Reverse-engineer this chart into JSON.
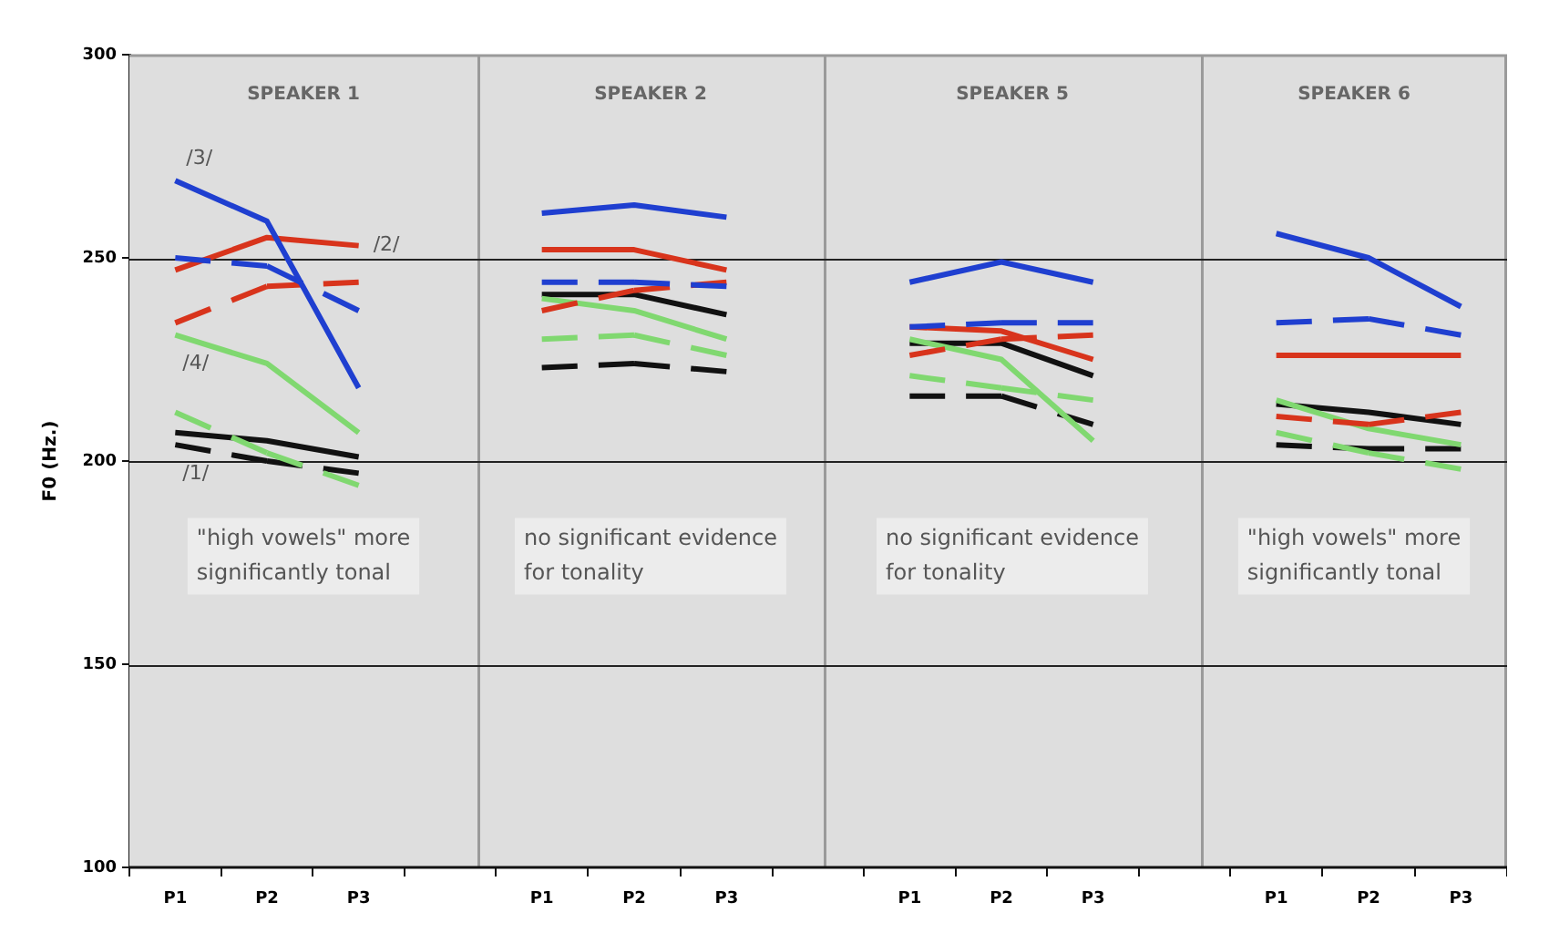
{
  "chart_data": [
    {
      "type": "line",
      "title": "SPEAKER 1",
      "ylabel": "F0 (Hz.)",
      "categories": [
        "P1",
        "P2",
        "P3"
      ],
      "ylim": [
        100,
        300
      ],
      "yticks": [
        100,
        150,
        200,
        250,
        300
      ],
      "grid": "y",
      "marker": "none",
      "annotations": [
        "\"high vowels\" more significantly tonal",
        {
          "text": "/3/",
          "x": "P1",
          "y": 269
        },
        {
          "text": "/2/",
          "x": "P3",
          "y": 253
        },
        {
          "text": "/4/",
          "x": "P1",
          "y": 231
        },
        {
          "text": "/1/",
          "x": "P1",
          "y": 204
        }
      ],
      "series": [
        {
          "color": "#1f3fd0",
          "line_style": "solid",
          "values": [
            269,
            259,
            218
          ]
        },
        {
          "color": "#1f3fd0",
          "line_style": "dashed",
          "values": [
            250,
            248,
            237
          ]
        },
        {
          "color": "#d8341c",
          "line_style": "solid",
          "values": [
            247,
            255,
            253
          ]
        },
        {
          "color": "#d8341c",
          "line_style": "dashed",
          "values": [
            234,
            243,
            244
          ]
        },
        {
          "color": "#80d870",
          "line_style": "solid",
          "values": [
            231,
            224,
            207
          ]
        },
        {
          "color": "#80d870",
          "line_style": "dashed",
          "values": [
            212,
            202,
            194
          ]
        },
        {
          "color": "#111111",
          "line_style": "solid",
          "values": [
            207,
            205,
            201
          ]
        },
        {
          "color": "#111111",
          "line_style": "dashed",
          "values": [
            204,
            200,
            197
          ]
        }
      ]
    },
    {
      "type": "line",
      "title": "SPEAKER 2",
      "categories": [
        "P1",
        "P2",
        "P3"
      ],
      "ylim": [
        100,
        300
      ],
      "yticks": [
        100,
        150,
        200,
        250,
        300
      ],
      "tick_labels": "x",
      "grid": "y",
      "marker": "none",
      "annotations": [
        "no significant evidence for tonality"
      ],
      "series": [
        {
          "color": "#1f3fd0",
          "line_style": "solid",
          "values": [
            261,
            263,
            260
          ]
        },
        {
          "color": "#1f3fd0",
          "line_style": "dashed",
          "values": [
            244,
            244,
            243
          ]
        },
        {
          "color": "#d8341c",
          "line_style": "solid",
          "values": [
            252,
            252,
            247
          ]
        },
        {
          "color": "#d8341c",
          "line_style": "dashed",
          "values": [
            237,
            242,
            244
          ]
        },
        {
          "color": "#80d870",
          "line_style": "solid",
          "values": [
            240,
            237,
            230
          ]
        },
        {
          "color": "#80d870",
          "line_style": "dashed",
          "values": [
            230,
            231,
            226
          ]
        },
        {
          "color": "#111111",
          "line_style": "solid",
          "values": [
            241,
            241,
            236
          ]
        },
        {
          "color": "#111111",
          "line_style": "dashed",
          "values": [
            223,
            224,
            222
          ]
        }
      ]
    },
    {
      "type": "line",
      "title": "SPEAKER 5",
      "categories": [
        "P1",
        "P2",
        "P3"
      ],
      "ylim": [
        100,
        300
      ],
      "yticks": [
        100,
        150,
        200,
        250,
        300
      ],
      "tick_labels": "x",
      "grid": "y",
      "marker": "none",
      "annotations": [
        "no significant evidence for tonality"
      ],
      "series": [
        {
          "color": "#1f3fd0",
          "line_style": "solid",
          "values": [
            244,
            249,
            244
          ]
        },
        {
          "color": "#1f3fd0",
          "line_style": "dashed",
          "values": [
            233,
            234,
            234
          ]
        },
        {
          "color": "#d8341c",
          "line_style": "solid",
          "values": [
            233,
            232,
            225
          ]
        },
        {
          "color": "#d8341c",
          "line_style": "dashed",
          "values": [
            226,
            230,
            231
          ]
        },
        {
          "color": "#80d870",
          "line_style": "solid",
          "values": [
            230,
            225,
            205
          ]
        },
        {
          "color": "#80d870",
          "line_style": "dashed",
          "values": [
            221,
            218,
            215
          ]
        },
        {
          "color": "#111111",
          "line_style": "solid",
          "values": [
            229,
            229,
            221
          ]
        },
        {
          "color": "#111111",
          "line_style": "dashed",
          "values": [
            216,
            216,
            209
          ]
        }
      ]
    },
    {
      "type": "line",
      "title": "SPEAKER 6",
      "categories": [
        "P1",
        "P2",
        "P3"
      ],
      "ylim": [
        100,
        300
      ],
      "yticks": [
        100,
        150,
        200,
        250,
        300
      ],
      "tick_labels": "x",
      "grid": "y",
      "marker": "none",
      "annotations": [
        "\"high vowels\" more significantly tonal"
      ],
      "series": [
        {
          "color": "#1f3fd0",
          "line_style": "solid",
          "values": [
            256,
            250,
            238
          ]
        },
        {
          "color": "#1f3fd0",
          "line_style": "dashed",
          "values": [
            234,
            235,
            231
          ]
        },
        {
          "color": "#d8341c",
          "line_style": "solid",
          "values": [
            226,
            226,
            226
          ]
        },
        {
          "color": "#d8341c",
          "line_style": "dashed",
          "values": [
            211,
            209,
            212
          ]
        },
        {
          "color": "#80d870",
          "line_style": "solid",
          "values": [
            215,
            208,
            204
          ]
        },
        {
          "color": "#80d870",
          "line_style": "dashed",
          "values": [
            207,
            202,
            198
          ]
        },
        {
          "color": "#111111",
          "line_style": "solid",
          "values": [
            214,
            212,
            209
          ]
        },
        {
          "color": "#111111",
          "line_style": "dashed",
          "values": [
            204,
            203,
            203
          ]
        }
      ]
    }
  ]
}
